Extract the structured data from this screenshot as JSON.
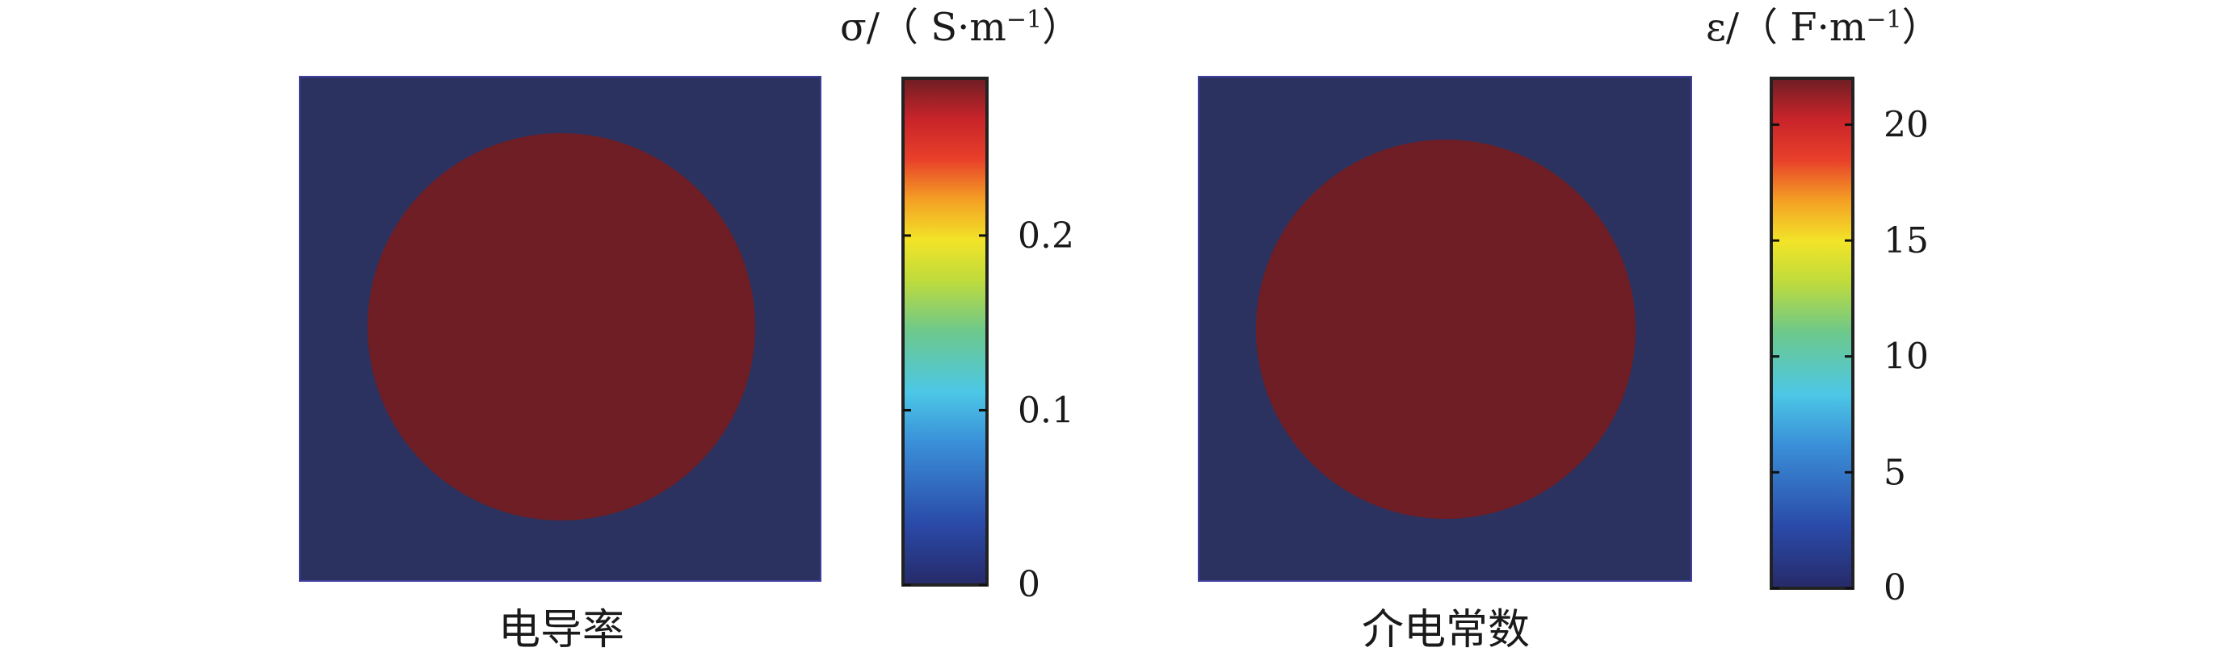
{
  "chart_data": [
    {
      "type": "heatmap",
      "title": "电导率",
      "colorbar": {
        "label_prefix": "σ/（ S·m",
        "label_exponent": "−1",
        "label_suffix": "）",
        "range": [
          0,
          0.29
        ],
        "ticks": [
          0,
          0.1,
          0.2
        ],
        "tick_labels": [
          "0",
          "0.1",
          "0.2"
        ],
        "colormap": "jet"
      },
      "domain_value": 0,
      "inclusion": {
        "shape": "circle",
        "value": 0.29
      }
    },
    {
      "type": "heatmap",
      "title": "介电常数",
      "colorbar": {
        "label_prefix": "ε/（ F·m",
        "label_exponent": "−1",
        "label_suffix": "）",
        "range": [
          0,
          22
        ],
        "ticks": [
          0,
          5,
          10,
          15,
          20
        ],
        "tick_labels": [
          "0",
          "5",
          "10",
          "15",
          "20"
        ],
        "colormap": "jet"
      },
      "domain_value": 0,
      "inclusion": {
        "shape": "circle",
        "value": 22
      }
    }
  ],
  "colors": {
    "background_domain": "#2b3260",
    "inclusion": "#6e1e24",
    "frame_border": "#3f3fa0",
    "colorbar_border": "#222222"
  }
}
